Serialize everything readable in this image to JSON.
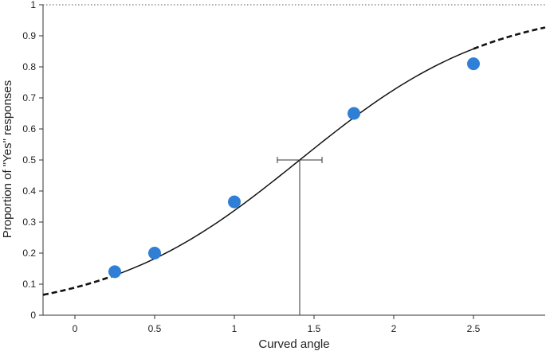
{
  "chart_data": {
    "type": "scatter",
    "xlabel": "Curved angle",
    "ylabel": "Proportion of \"Yes\" responses",
    "xlim": [
      -0.2,
      2.95
    ],
    "ylim": [
      0,
      1
    ],
    "x_ticks": [
      "0",
      "0.5",
      "1",
      "1.5",
      "2",
      "2.5"
    ],
    "y_ticks": [
      "0",
      "0.1",
      "0.2",
      "0.3",
      "0.4",
      "0.5",
      "0.6",
      "0.7",
      "0.8",
      "0.9",
      "1"
    ],
    "points": [
      {
        "x": 0.25,
        "y": 0.14
      },
      {
        "x": 0.5,
        "y": 0.2
      },
      {
        "x": 1.0,
        "y": 0.365
      },
      {
        "x": 1.75,
        "y": 0.65
      },
      {
        "x": 2.5,
        "y": 0.81
      }
    ],
    "fit_curve": {
      "model": "logistic",
      "midpoint": 1.41,
      "slope": 1.65,
      "solid_range": [
        0.25,
        2.5
      ]
    },
    "threshold": {
      "x": 1.41,
      "y": 0.5,
      "ci": [
        1.27,
        1.55
      ]
    },
    "reference_line_y": 1,
    "grid": false,
    "colors": {
      "points": "#2f7fd6",
      "curve": "#111111",
      "axis": "#333333"
    }
  }
}
